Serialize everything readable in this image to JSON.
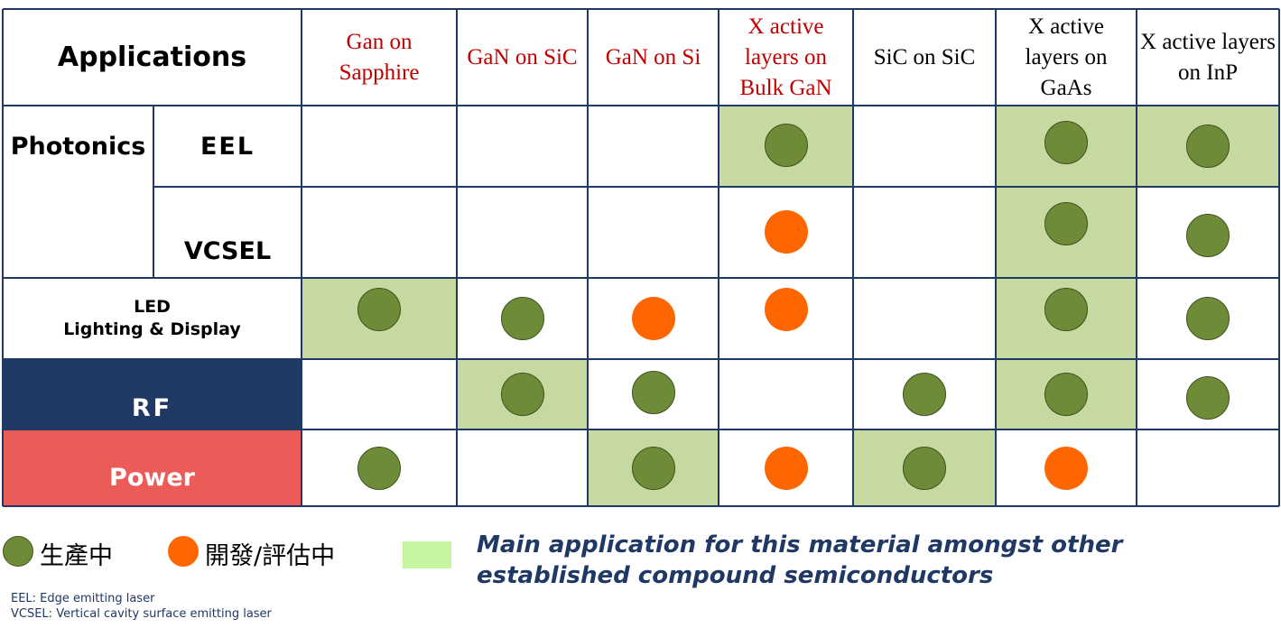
{
  "header": {
    "applications": "Applications"
  },
  "columns": [
    {
      "label": "Gan on Sapphire",
      "color": "#c00000"
    },
    {
      "label": "GaN on SiC",
      "color": "#c00000"
    },
    {
      "label": "GaN on Si",
      "color": "#c00000"
    },
    {
      "label": "X active layers on Bulk GaN",
      "color": "#c00000"
    },
    {
      "label": "SiC on SiC",
      "color": "#000000"
    },
    {
      "label": "X active layers on GaAs",
      "color": "#000000"
    },
    {
      "label": "X active layers on InP",
      "color": "#000000"
    }
  ],
  "rows": [
    {
      "group": "Photonics",
      "label": "EEL",
      "highlight": [
        false,
        false,
        false,
        true,
        false,
        true,
        true
      ],
      "status": [
        "",
        "",
        "",
        "production",
        "",
        "production",
        "production"
      ]
    },
    {
      "group": "Photonics",
      "label": "VCSEL",
      "highlight": [
        false,
        false,
        false,
        false,
        false,
        true,
        false
      ],
      "status": [
        "",
        "",
        "",
        "development",
        "",
        "production",
        "production"
      ]
    },
    {
      "label_line1": "LED",
      "label_line2": "Lighting & Display",
      "highlight": [
        true,
        false,
        false,
        false,
        false,
        true,
        false
      ],
      "status": [
        "production",
        "production",
        "development",
        "development",
        "",
        "production",
        "production"
      ]
    },
    {
      "label": "RF",
      "label_bg": "#1f3864",
      "label_color": "#ffffff",
      "highlight": [
        false,
        true,
        false,
        false,
        false,
        true,
        false
      ],
      "status": [
        "",
        "production",
        "production",
        "",
        "production",
        "production",
        "production"
      ]
    },
    {
      "label": "Power",
      "label_bg": "#eb5b57",
      "label_color": "#ffffff",
      "highlight": [
        false,
        false,
        true,
        false,
        true,
        false,
        false
      ],
      "status": [
        "production",
        "",
        "production",
        "development",
        "production",
        "development",
        ""
      ]
    }
  ],
  "colors": {
    "production": "#6e8c37",
    "development": "#ff6600",
    "highlight": "#c5d9a0",
    "legend_highlight": "#c8f5a0",
    "grid": "#1f3864"
  },
  "legend": {
    "production": "生產中",
    "development": "開發/評估中",
    "highlight_line1": "Main application for this material amongst other",
    "highlight_line2": "established compound semiconductors"
  },
  "notes": {
    "eel": "EEL: Edge emitting laser",
    "vcsel": "VCSEL: Vertical cavity surface emitting laser"
  }
}
